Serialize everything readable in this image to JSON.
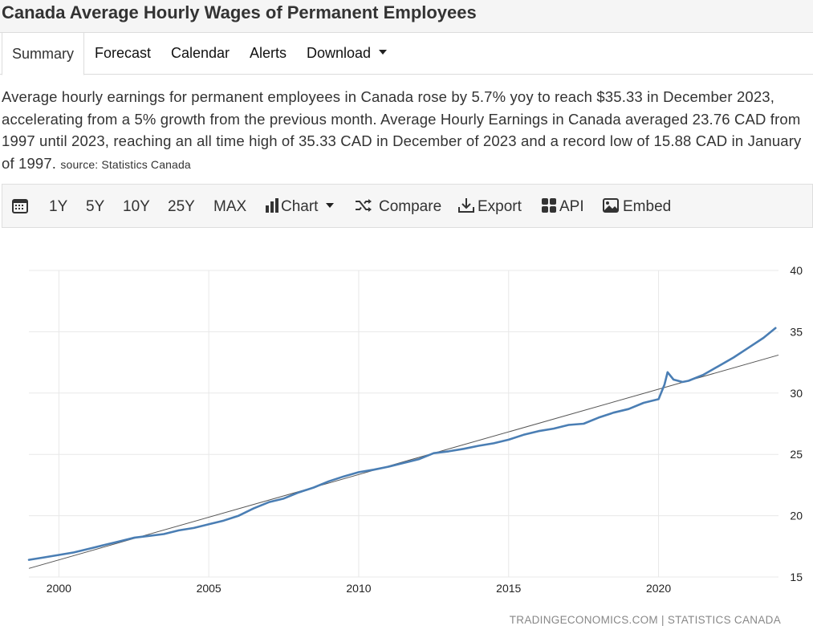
{
  "header": {
    "title": "Canada Average Hourly Wages of Permanent Employees"
  },
  "tabs": [
    {
      "label": "Summary"
    },
    {
      "label": "Forecast"
    },
    {
      "label": "Calendar"
    },
    {
      "label": "Alerts"
    },
    {
      "label": "Download"
    }
  ],
  "description": {
    "line1": "Average hourly earnings for permanent employees in Canada rose by 5.7% yoy to reach $35.33 in December 2023,",
    "line2": "accelerating from a 5% growth from the previous month. Average Hourly Earnings in Canada averaged 23.76 CAD from",
    "line3": "1997 until 2023, reaching an all time high of 35.33 CAD in December of 2023 and a record low of 15.88 CAD in January",
    "line4": "of 1997.",
    "source": "source: Statistics Canada"
  },
  "toolbar": {
    "calendar_icon": "calendar-icon",
    "ranges": [
      "1Y",
      "5Y",
      "10Y",
      "25Y",
      "MAX"
    ],
    "chart_label": "Chart",
    "compare_label": "Compare",
    "export_label": "Export",
    "api_label": "API",
    "embed_label": "Embed"
  },
  "credit": "TRADINGECONOMICS.COM | STATISTICS CANADA",
  "colors": {
    "series": "#4a7eb4",
    "trend": "#555555",
    "grid": "#e8e8e8"
  },
  "chart_data": {
    "type": "line",
    "title": "",
    "xlabel": "",
    "ylabel": "",
    "x_ticks": [
      "2000",
      "2005",
      "2010",
      "2015",
      "2020"
    ],
    "y_ticks": [
      "15",
      "20",
      "25",
      "30",
      "35",
      "40"
    ],
    "xlim": [
      1999.0,
      2024.0
    ],
    "ylim": [
      15,
      40
    ],
    "grid": true,
    "trend_line": {
      "x": [
        1999.0,
        2024.0
      ],
      "y": [
        15.7,
        33.1
      ]
    },
    "series": [
      {
        "x": [
          1999.0,
          1999.5,
          2000.0,
          2000.5,
          2001.0,
          2001.5,
          2002.0,
          2002.5,
          2003.0,
          2003.5,
          2004.0,
          2004.5,
          2005.0,
          2005.5,
          2006.0,
          2006.5,
          2007.0,
          2007.5,
          2008.0,
          2008.5,
          2009.0,
          2009.5,
          2010.0,
          2010.5,
          2011.0,
          2011.5,
          2012.0,
          2012.5,
          2013.0,
          2013.5,
          2014.0,
          2014.5,
          2015.0,
          2015.5,
          2016.0,
          2016.5,
          2017.0,
          2017.5,
          2018.0,
          2018.5,
          2019.0,
          2019.5,
          2020.0,
          2020.2,
          2020.3,
          2020.5,
          2020.8,
          2021.0,
          2021.5,
          2022.0,
          2022.5,
          2023.0,
          2023.5,
          2023.9
        ],
        "y": [
          16.4,
          16.6,
          16.8,
          17.0,
          17.3,
          17.6,
          17.9,
          18.2,
          18.35,
          18.5,
          18.8,
          19.0,
          19.3,
          19.6,
          20.0,
          20.6,
          21.1,
          21.4,
          21.9,
          22.3,
          22.8,
          23.2,
          23.55,
          23.75,
          24.0,
          24.3,
          24.6,
          25.1,
          25.25,
          25.45,
          25.7,
          25.9,
          26.2,
          26.6,
          26.9,
          27.1,
          27.4,
          27.5,
          28.0,
          28.4,
          28.7,
          29.2,
          29.5,
          30.7,
          31.7,
          31.1,
          30.9,
          31.0,
          31.5,
          32.2,
          32.9,
          33.7,
          34.5,
          35.3
        ]
      }
    ]
  }
}
